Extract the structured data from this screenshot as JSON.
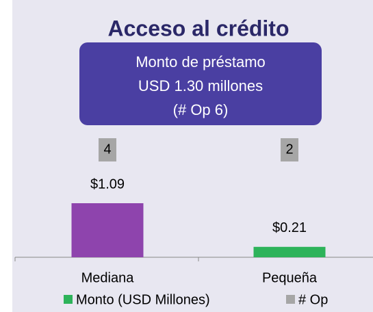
{
  "chart_data": {
    "type": "bar",
    "title": "Acceso al crédito",
    "annotation": [
      "Monto de préstamo",
      "USD 1.30 millones",
      "(# Op 6)"
    ],
    "categories": [
      "Mediana",
      "Pequeña"
    ],
    "series": [
      {
        "name": "Monto (USD Millones)",
        "color": "#2db35a",
        "point_colors": [
          "#8e44ad",
          "#2db35a"
        ],
        "values": [
          1.09,
          0.21
        ],
        "value_labels": [
          "$1.09",
          "$0.21"
        ]
      },
      {
        "name": "# Op",
        "color": "#a6a6a6",
        "values": [
          4,
          2
        ]
      }
    ]
  }
}
